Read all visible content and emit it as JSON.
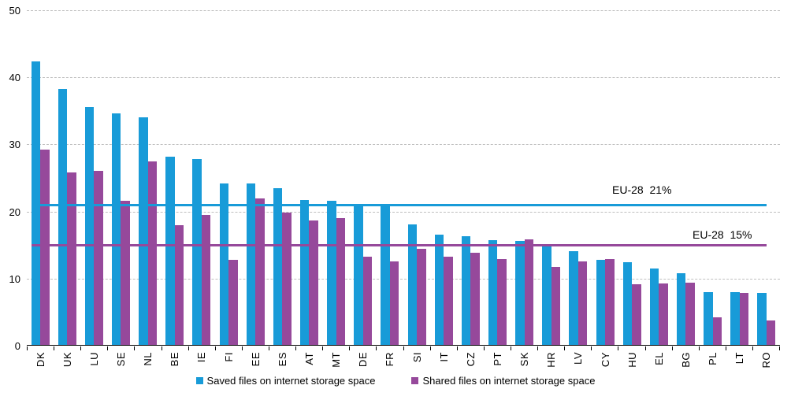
{
  "chart_data": {
    "type": "bar",
    "title": "",
    "categories": [
      "DK",
      "UK",
      "LU",
      "SE",
      "NL",
      "BE",
      "IE",
      "FI",
      "EE",
      "ES",
      "AT",
      "MT",
      "DE",
      "FR",
      "SI",
      "IT",
      "CZ",
      "PT",
      "SK",
      "HR",
      "LV",
      "CY",
      "HU",
      "EL",
      "BG",
      "PL",
      "LT",
      "RO"
    ],
    "series": [
      {
        "name": "Saved files on internet storage space",
        "color": "#189BD8",
        "values": [
          42.3,
          38.2,
          35.5,
          34.5,
          33.9,
          28.1,
          27.7,
          24.1,
          24.1,
          23.4,
          21.6,
          21.5,
          21.0,
          21.0,
          18.0,
          16.4,
          16.2,
          15.6,
          15.5,
          14.9,
          14.0,
          12.7,
          12.3,
          11.4,
          10.7,
          7.9,
          7.9,
          7.8
        ]
      },
      {
        "name": "Shared files on internet storage space",
        "color": "#96499B",
        "values": [
          29.1,
          25.7,
          26.0,
          21.5,
          27.4,
          17.8,
          19.4,
          12.7,
          21.8,
          19.7,
          18.6,
          18.9,
          13.1,
          12.4,
          14.3,
          13.2,
          13.7,
          12.8,
          15.7,
          11.6,
          12.5,
          12.8,
          9.0,
          9.2,
          9.3,
          4.1,
          7.8,
          3.7
        ]
      }
    ],
    "reference_lines": [
      {
        "label": "EU-28  21%",
        "value": 21,
        "color": "#189BD8"
      },
      {
        "label": "EU-28  15%",
        "value": 15,
        "color": "#96499B"
      }
    ],
    "ylim": [
      0,
      50
    ],
    "yticks": [
      0,
      10,
      20,
      30,
      40,
      50
    ],
    "xlabel": "",
    "ylabel": "",
    "grid": "horizontal-dashed",
    "legend_position": "bottom-center",
    "colors": {
      "grid": "#bfbfbf",
      "axis": "#000000",
      "text": "#000000"
    }
  }
}
